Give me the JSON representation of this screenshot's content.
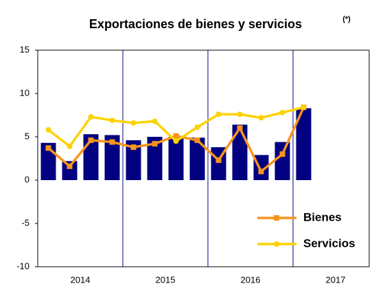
{
  "chart_data": {
    "type": "bar_line",
    "title": "Exportaciones de bienes y servicios",
    "title_note": "(*)",
    "categories": [
      null,
      null,
      null,
      null,
      null,
      null,
      null,
      null,
      null,
      null,
      null,
      null,
      null
    ],
    "year_labels": [
      "2014",
      "2015",
      "2016",
      "2017"
    ],
    "bars": {
      "color": "#000080",
      "values": [
        4.3,
        2.2,
        5.3,
        5.2,
        4.6,
        5.0,
        5.0,
        4.9,
        3.8,
        6.4,
        2.9,
        4.4,
        8.3
      ]
    },
    "series": [
      {
        "name": "Bienes",
        "color": "#f7941d",
        "marker": "square",
        "values": [
          3.7,
          1.6,
          4.6,
          4.4,
          3.8,
          4.2,
          5.1,
          4.6,
          2.3,
          6.0,
          1.0,
          3.0,
          8.4
        ]
      },
      {
        "name": "Servicios",
        "color": "#fdd200",
        "marker": "circle",
        "values": [
          5.8,
          3.9,
          7.3,
          6.9,
          6.6,
          6.8,
          4.5,
          6.1,
          7.6,
          7.6,
          7.2,
          7.8,
          8.4
        ]
      }
    ],
    "ylim": [
      -10,
      15
    ],
    "yticks": [
      -10,
      -5,
      0,
      5,
      10,
      15
    ],
    "legend": "lower right"
  }
}
